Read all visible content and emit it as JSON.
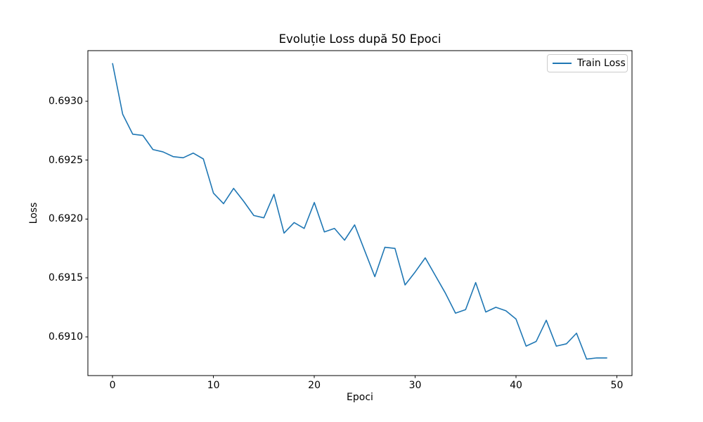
{
  "chart_data": {
    "type": "line",
    "title": "Evoluție Loss după 50 Epoci",
    "xlabel": "Epoci",
    "ylabel": "Loss",
    "grid": false,
    "legend": {
      "position": "upper right",
      "entries": [
        "Train Loss"
      ]
    },
    "line_color": "#1f77b4",
    "axis_color": "#000000",
    "xlim": [
      -2.45,
      51.5
    ],
    "ylim": [
      0.69067,
      0.69343
    ],
    "xticks": [
      0,
      10,
      20,
      30,
      40,
      50
    ],
    "xtick_labels": [
      "0",
      "10",
      "20",
      "30",
      "40",
      "50"
    ],
    "yticks": [
      0.691,
      0.6915,
      0.692,
      0.6925,
      0.693
    ],
    "ytick_labels": [
      "0.6910",
      "0.6915",
      "0.6920",
      "0.6925",
      "0.6930"
    ],
    "series": [
      {
        "name": "Train Loss",
        "color": "#1f77b4",
        "x": [
          0,
          1,
          2,
          3,
          4,
          5,
          6,
          7,
          8,
          9,
          10,
          11,
          12,
          13,
          14,
          15,
          16,
          17,
          18,
          19,
          20,
          21,
          22,
          23,
          24,
          25,
          26,
          27,
          28,
          29,
          30,
          31,
          32,
          33,
          34,
          35,
          36,
          37,
          38,
          39,
          40,
          41,
          42,
          43,
          44,
          45,
          46,
          47,
          48,
          49
        ],
        "y": [
          0.69332,
          0.69289,
          0.69272,
          0.69271,
          0.69259,
          0.69257,
          0.69253,
          0.69252,
          0.69256,
          0.69251,
          0.69222,
          0.69213,
          0.69226,
          0.69215,
          0.69203,
          0.69201,
          0.69221,
          0.69188,
          0.69197,
          0.69192,
          0.69214,
          0.69189,
          0.69192,
          0.69182,
          0.69195,
          0.69173,
          0.69151,
          0.69176,
          0.69175,
          0.69144,
          0.69155,
          0.69167,
          0.69152,
          0.69137,
          0.6912,
          0.69123,
          0.69146,
          0.69121,
          0.69125,
          0.69122,
          0.69115,
          0.69092,
          0.69096,
          0.69114,
          0.69092,
          0.69094,
          0.69103,
          0.69081,
          0.69082,
          0.69082
        ]
      }
    ]
  }
}
